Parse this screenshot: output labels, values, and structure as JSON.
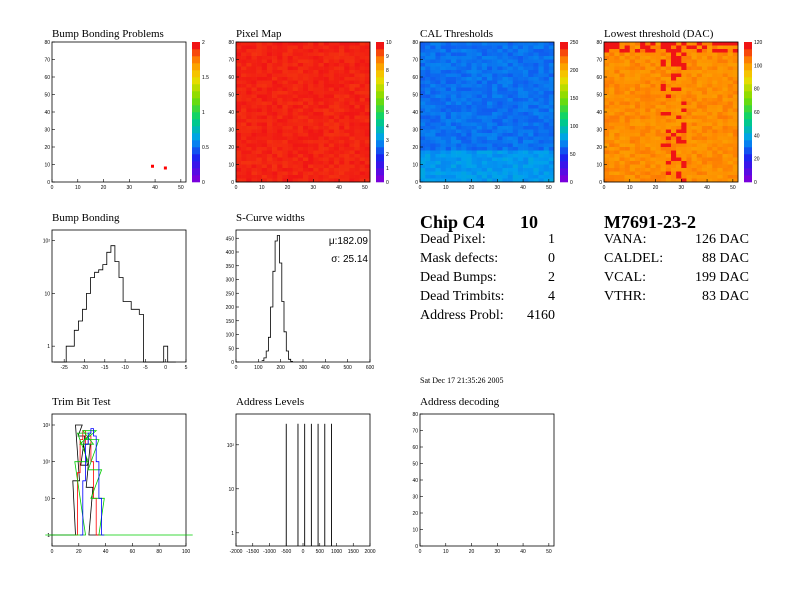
{
  "chart_data": [
    {
      "type": "heatmap",
      "title": "Bump Bonding Problems",
      "xlim": [
        0,
        52
      ],
      "ylim": [
        0,
        80
      ],
      "x_ticks": [
        0,
        10,
        20,
        30,
        40,
        50
      ],
      "y_ticks": [
        0,
        10,
        20,
        30,
        40,
        50,
        60,
        70,
        80
      ],
      "colorbar_ticks": [
        "0",
        "0.5",
        "1",
        "1.5",
        "2"
      ],
      "points": [
        {
          "x": 39,
          "y": 9
        },
        {
          "x": 44,
          "y": 8
        }
      ]
    },
    {
      "type": "heatmap",
      "title": "Pixel Map",
      "xlim": [
        0,
        52
      ],
      "ylim": [
        0,
        80
      ],
      "x_ticks": [
        0,
        10,
        20,
        30,
        40,
        50
      ],
      "y_ticks": [
        0,
        10,
        20,
        30,
        40,
        50,
        60,
        70,
        80
      ],
      "colorbar_ticks": [
        "0",
        "1",
        "2",
        "3",
        "4",
        "5",
        "6",
        "7",
        "8",
        "9",
        "10"
      ],
      "fill_value": 10
    },
    {
      "type": "heatmap",
      "title": "CAL Thresholds",
      "xlim": [
        0,
        52
      ],
      "ylim": [
        0,
        80
      ],
      "x_ticks": [
        0,
        10,
        20,
        30,
        40,
        50
      ],
      "y_ticks": [
        0,
        10,
        20,
        30,
        40,
        50,
        60,
        70,
        80
      ],
      "colorbar_ticks": [
        "0",
        "50",
        "100",
        "150",
        "200",
        "250"
      ],
      "fill_value": 70
    },
    {
      "type": "heatmap",
      "title": "Lowest threshold (DAC)",
      "xlim": [
        0,
        52
      ],
      "ylim": [
        0,
        80
      ],
      "x_ticks": [
        0,
        10,
        20,
        30,
        40,
        50
      ],
      "y_ticks": [
        0,
        10,
        20,
        30,
        40,
        50,
        60,
        70,
        80
      ],
      "colorbar_ticks": [
        "0",
        "20",
        "40",
        "60",
        "80",
        "100",
        "120"
      ],
      "fill_value": 100
    },
    {
      "type": "line",
      "title": "Bump Bonding",
      "xlim": [
        -28,
        5
      ],
      "x_ticks": [
        -25,
        -20,
        -15,
        -10,
        -5,
        0,
        5
      ],
      "y_log": true,
      "y_range_log10": [
        -0.3,
        2.2
      ],
      "y_ticks": [
        "1",
        "10",
        "10²"
      ],
      "series": [
        {
          "x": [
            -27,
            -26,
            -25,
            -24,
            -23,
            -22,
            -21,
            -20,
            -19,
            -18,
            -17,
            -16,
            -15,
            -14,
            -13,
            -12,
            -11,
            -10,
            -9,
            -8,
            -7,
            -6,
            -5,
            -4,
            -3,
            -2,
            -1,
            0,
            1,
            2
          ],
          "values": [
            0,
            0,
            0,
            1,
            1,
            2,
            3,
            5,
            10,
            20,
            25,
            28,
            35,
            60,
            80,
            40,
            20,
            7,
            7,
            5,
            5,
            4,
            0,
            0,
            0,
            0,
            0,
            1,
            0,
            0
          ]
        }
      ]
    },
    {
      "type": "line",
      "title": "S-Curve widths",
      "annotations": [
        "μ:182.09",
        "σ: 25.14"
      ],
      "xlim": [
        0,
        600
      ],
      "x_ticks": [
        0,
        100,
        200,
        300,
        400,
        500,
        600
      ],
      "ylim": [
        0,
        480
      ],
      "y_ticks": [
        0,
        50,
        100,
        150,
        200,
        250,
        300,
        350,
        400,
        450
      ],
      "series": [
        {
          "x": [
            120,
            130,
            140,
            150,
            160,
            170,
            180,
            190,
            200,
            210,
            220,
            230,
            240,
            250
          ],
          "values": [
            5,
            15,
            40,
            90,
            200,
            330,
            440,
            460,
            360,
            220,
            110,
            40,
            10,
            2
          ]
        }
      ]
    },
    {
      "type": "line",
      "title": "Trim Bit Test",
      "xlim": [
        0,
        100
      ],
      "x_ticks": [
        0,
        20,
        40,
        60,
        80,
        100
      ],
      "y_log": true,
      "y_range_log10": [
        -0.3,
        3.3
      ],
      "y_ticks": [
        "1",
        "10",
        "10²",
        "10³"
      ],
      "series": [
        {
          "x": [
            0,
            5,
            10,
            15,
            18,
            20,
            22,
            24,
            26,
            28,
            30,
            35
          ],
          "values": [
            1,
            1,
            1,
            1,
            30,
            1000,
            500,
            80,
            300,
            20,
            1,
            1
          ],
          "color": "#000000"
        },
        {
          "x": [
            18,
            20,
            22,
            24,
            26,
            28,
            30,
            32,
            34
          ],
          "values": [
            1,
            50,
            400,
            700,
            300,
            500,
            100,
            10,
            1
          ],
          "color": "#ff0000"
        },
        {
          "x": [
            0,
            10,
            20,
            22,
            24,
            26,
            28,
            30,
            32,
            34,
            40,
            60,
            80,
            100
          ],
          "values": [
            1,
            1,
            1,
            100,
            600,
            300,
            700,
            400,
            60,
            10,
            1,
            1,
            1,
            1
          ],
          "color": "#00cc00"
        },
        {
          "x": [
            22,
            24,
            26,
            28,
            30,
            32,
            34,
            36,
            38
          ],
          "values": [
            1,
            30,
            300,
            600,
            800,
            500,
            100,
            10,
            1
          ],
          "color": "#0000ff"
        }
      ]
    },
    {
      "type": "line",
      "title": "Address Levels",
      "xlim": [
        -2000,
        2000
      ],
      "x_ticks": [
        -2000,
        -1500,
        -1000,
        -500,
        0,
        500,
        1000,
        1500,
        2000
      ],
      "y_log": true,
      "y_range_log10": [
        -0.3,
        2.7
      ],
      "y_ticks": [
        "1",
        "10",
        "10²"
      ],
      "series": [
        {
          "peaks_x": [
            -500,
            -150,
            50,
            250,
            450,
            650,
            850
          ],
          "peak_value": 300
        }
      ]
    },
    {
      "type": "scatter",
      "title": "Address decoding",
      "xlim": [
        0,
        52
      ],
      "ylim": [
        0,
        80
      ],
      "x_ticks": [
        0,
        10,
        20,
        30,
        40,
        50
      ],
      "y_ticks": [
        0,
        10,
        20,
        30,
        40,
        50,
        60,
        70,
        80
      ]
    }
  ],
  "summary": {
    "chip_label": "Chip C4",
    "chip_grade": "10",
    "rows": [
      {
        "label": "Dead Pixel:",
        "value": "1"
      },
      {
        "label": "Mask defects:",
        "value": "0"
      },
      {
        "label": "Dead Bumps:",
        "value": "2"
      },
      {
        "label": "Dead Trimbits:",
        "value": "4"
      },
      {
        "label": "Address Probl:",
        "value": "4160"
      }
    ],
    "module_id": "M7691-23-2",
    "dacs": [
      {
        "label": "VANA:",
        "value": "126 DAC"
      },
      {
        "label": "CALDEL:",
        "value": "88 DAC"
      },
      {
        "label": "VCAL:",
        "value": "199 DAC"
      },
      {
        "label": "VTHR:",
        "value": "83 DAC"
      }
    ],
    "timestamp": "Sat Dec 17 21:35:26 2005"
  }
}
